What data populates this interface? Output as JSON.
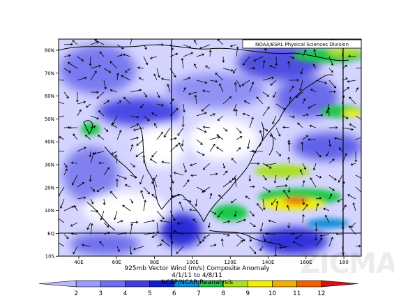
{
  "header": {
    "source": "NOAA/ESRL Physical Sciences Division"
  },
  "axes": {
    "lat_labels": [
      "80N",
      "70N",
      "60N",
      "50N",
      "40N",
      "30N",
      "20N",
      "10N",
      "EQ",
      "10S"
    ],
    "lon_labels": [
      "40E",
      "60E",
      "80E",
      "100E",
      "120E",
      "140E",
      "160E",
      "180"
    ]
  },
  "caption": {
    "line1": "925mb Vector Wind (m/s) Composite Anomaly",
    "line2": "4/1/11 to 4/8/11",
    "line3": "NCEP/NCAR Reanalysis"
  },
  "colorbar": {
    "ticks": [
      "2",
      "3",
      "4",
      "5",
      "6",
      "7",
      "8",
      "9",
      "10",
      "11",
      "12"
    ],
    "colors": [
      "#b8b8ff",
      "#9c9cff",
      "#6e6ef0",
      "#3f3fe0",
      "#0f1fd0",
      "#0b8fd8",
      "#1fc84a",
      "#a8e020",
      "#f0f000",
      "#f0b000",
      "#f06000",
      "#d81010"
    ]
  },
  "colors": {
    "background": "#ffffff",
    "land_outline": "#000000"
  },
  "watermark": "ZICMA"
}
